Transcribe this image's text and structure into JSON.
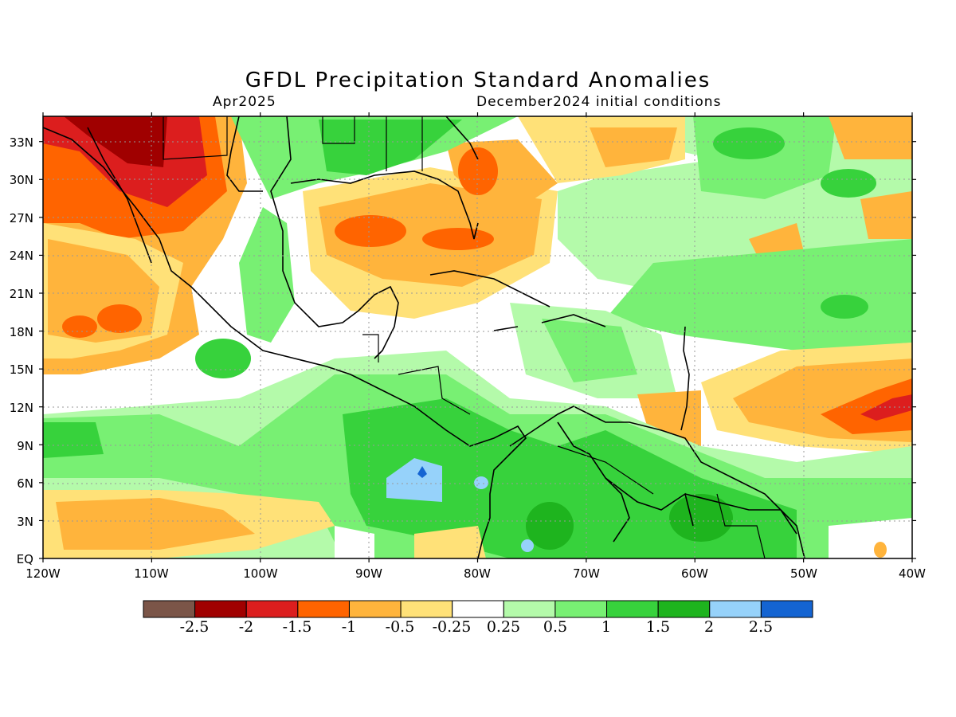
{
  "title": "GFDL Precipitation Standard Anomalies",
  "valid_month": "Apr2025",
  "init_conditions": "December2024 initial conditions",
  "map": {
    "lon_labels": [
      "120W",
      "110W",
      "100W",
      "90W",
      "80W",
      "70W",
      "60W",
      "50W",
      "40W"
    ],
    "lat_labels": [
      "EQ",
      "3N",
      "6N",
      "9N",
      "12N",
      "15N",
      "18N",
      "21N",
      "24N",
      "27N",
      "30N",
      "33N"
    ],
    "lon_range": [
      -120,
      -40
    ],
    "lat_range": [
      0,
      35
    ],
    "gridlines": "dotted"
  },
  "colorbar": {
    "colors": [
      "#7b5548",
      "#a00000",
      "#dc1e1e",
      "#ff6400",
      "#ffb43c",
      "#ffe178",
      "#ffffff",
      "#b4faaa",
      "#78f073",
      "#37d23c",
      "#1eb41e",
      "#96d2fa",
      "#1464d2"
    ],
    "labels": [
      "-2.5",
      "-2",
      "-1.5",
      "-1",
      "-0.5",
      "-0.25",
      "0.25",
      "0.5",
      "1",
      "1.5",
      "2",
      "2.5"
    ]
  }
}
